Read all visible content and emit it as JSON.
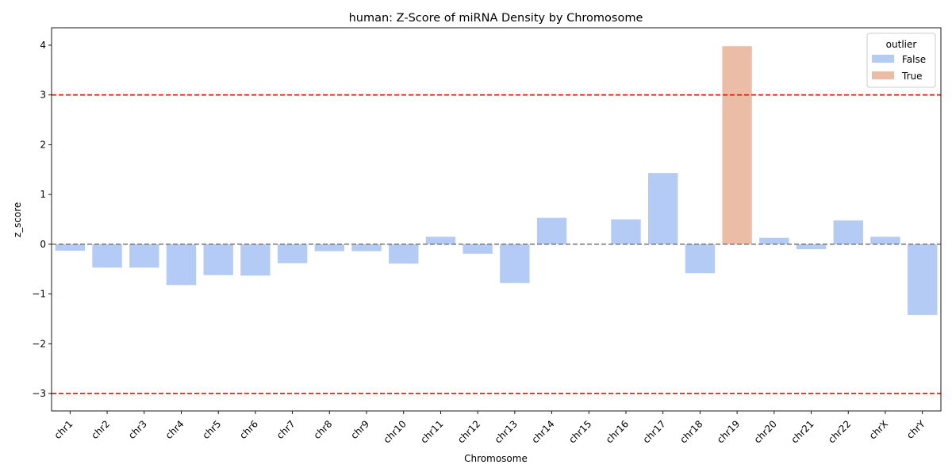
{
  "chart_data": {
    "type": "bar",
    "title": "human: Z-Score of miRNA Density by Chromosome",
    "xlabel": "Chromosome",
    "ylabel": "z_score",
    "ylim": [
      -3.35,
      4.35
    ],
    "yticks": [
      -3,
      -2,
      -1,
      0,
      1,
      2,
      3,
      4
    ],
    "ytick_labels": [
      "−3",
      "−2",
      "−1",
      "0",
      "1",
      "2",
      "3",
      "4"
    ],
    "categories": [
      "chr1",
      "chr2",
      "chr3",
      "chr4",
      "chr5",
      "chr6",
      "chr7",
      "chr8",
      "chr9",
      "chr10",
      "chr11",
      "chr12",
      "chr13",
      "chr14",
      "chr15",
      "chr16",
      "chr17",
      "chr18",
      "chr19",
      "chr20",
      "chr21",
      "chr22",
      "chrX",
      "chrY"
    ],
    "values": [
      -0.13,
      -0.47,
      -0.47,
      -0.82,
      -0.62,
      -0.63,
      -0.38,
      -0.14,
      -0.14,
      -0.39,
      0.15,
      -0.19,
      -0.78,
      0.53,
      0.0,
      0.5,
      1.43,
      -0.58,
      3.98,
      0.13,
      -0.1,
      0.48,
      0.15,
      -1.42
    ],
    "outlier": [
      false,
      false,
      false,
      false,
      false,
      false,
      false,
      false,
      false,
      false,
      false,
      false,
      false,
      false,
      false,
      false,
      false,
      false,
      true,
      false,
      false,
      false,
      false,
      false
    ],
    "reference_lines": [
      {
        "y": 3,
        "color": "#ff0000",
        "style": "dashed"
      },
      {
        "y": -3,
        "color": "#ff0000",
        "style": "dashed"
      },
      {
        "y": 0,
        "color": "#808080",
        "style": "dashed"
      }
    ],
    "legend": {
      "title": "outlier",
      "position": "top-right",
      "entries": [
        {
          "label": "False",
          "color": "#b4cbf5"
        },
        {
          "label": "True",
          "color": "#ebbda6"
        }
      ]
    },
    "grid": false
  }
}
